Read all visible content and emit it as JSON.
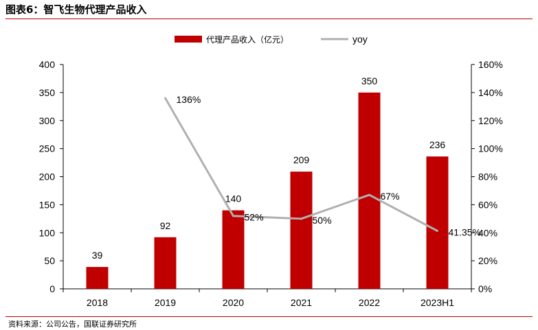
{
  "header": {
    "title": "图表6：智飞生物代理产品收入"
  },
  "footer": {
    "source": "资料来源：公司公告，国联证券研究所"
  },
  "chart_data": {
    "type": "bar",
    "categories": [
      "2018",
      "2019",
      "2020",
      "2021",
      "2022",
      "2023H1"
    ],
    "series": [
      {
        "name": "代理产品收入（亿元）",
        "type": "bar",
        "axis": "left",
        "color": "#c00000",
        "values": [
          39,
          92,
          140,
          209,
          350,
          236
        ],
        "labels": [
          "39",
          "92",
          "140",
          "209",
          "350",
          "236"
        ]
      },
      {
        "name": "yoy",
        "type": "line",
        "axis": "right",
        "color": "#b0b0b0",
        "values": [
          null,
          1.36,
          0.52,
          0.5,
          0.67,
          0.4135
        ],
        "labels": [
          "",
          "136%",
          "52%",
          "50%",
          "67%",
          "41.35%"
        ]
      }
    ],
    "y_left": {
      "min": 0,
      "max": 400,
      "step": 50,
      "ticks": [
        "0",
        "50",
        "100",
        "150",
        "200",
        "250",
        "300",
        "350",
        "400"
      ]
    },
    "y_right": {
      "min": 0,
      "max": 1.6,
      "step": 0.2,
      "ticks": [
        "0%",
        "20%",
        "40%",
        "60%",
        "80%",
        "100%",
        "120%",
        "140%",
        "160%"
      ]
    },
    "legend": {
      "position": "top-center"
    },
    "grid": false
  }
}
